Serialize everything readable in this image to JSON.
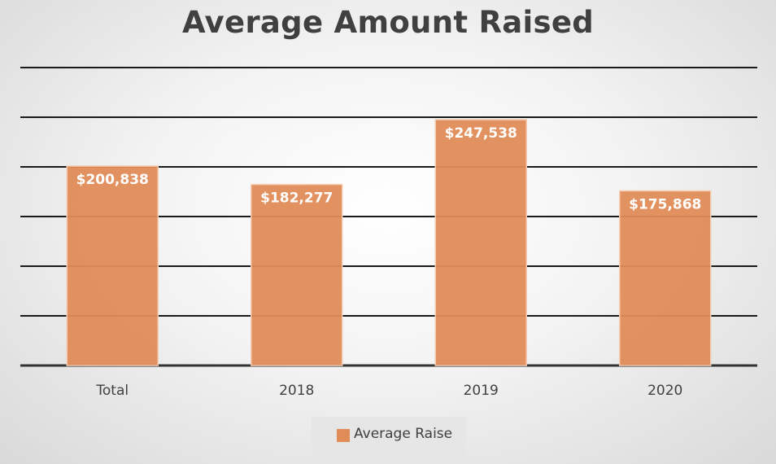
{
  "chart_data": {
    "type": "bar",
    "title": "Average Amount Raised",
    "categories": [
      "Total",
      "2018",
      "2019",
      "2020"
    ],
    "series": [
      {
        "name": "Average Raise",
        "values": [
          200838,
          182277,
          247538,
          175868
        ],
        "labels": [
          "$200,838",
          "$182,277",
          "$247,538",
          "$175,868"
        ],
        "color": "#e08c57"
      }
    ],
    "xlabel": "",
    "ylabel": "",
    "ylim": [
      0,
      300000
    ],
    "grid": true,
    "legend": "bottom"
  }
}
